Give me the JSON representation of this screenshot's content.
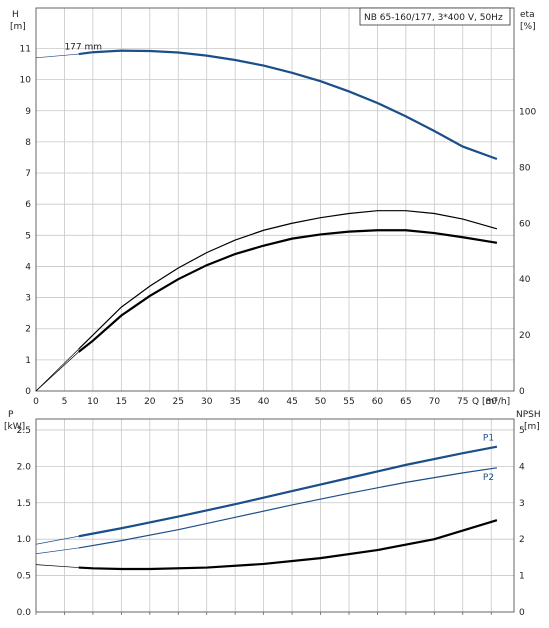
{
  "chart_data": [
    {
      "type": "line",
      "title": "NB 65-160/177, 3*400 V, 50Hz",
      "x_axis": {
        "label": "Q [m³/h]",
        "range": [
          0,
          84
        ],
        "ticks": [
          0,
          5,
          10,
          15,
          20,
          25,
          30,
          35,
          40,
          45,
          50,
          55,
          60,
          65,
          70,
          75,
          80
        ]
      },
      "y_axis_left": {
        "label_line1": "H",
        "label_line2": "[m]",
        "range": [
          0,
          12.3
        ],
        "ticks": [
          0,
          1,
          2,
          3,
          4,
          5,
          6,
          7,
          8,
          9,
          10,
          11
        ]
      },
      "y_axis_right": {
        "label_line1": "eta",
        "label_line2": "[%]",
        "range": [
          0,
          137
        ],
        "ticks": [
          0,
          20,
          40,
          60,
          80,
          100
        ]
      },
      "grid": true,
      "annotations": [
        {
          "text": "177 mm",
          "x": 5,
          "y": 10.9
        }
      ],
      "series": [
        {
          "name": "177 mm",
          "axis": "left",
          "color": "#1b4f8a",
          "x": [
            0,
            7.5,
            10,
            15,
            20,
            25,
            30,
            35,
            40,
            45,
            50,
            55,
            60,
            65,
            70,
            75,
            81
          ],
          "y": [
            10.7,
            10.82,
            10.88,
            10.93,
            10.92,
            10.87,
            10.77,
            10.63,
            10.45,
            10.22,
            9.95,
            9.62,
            9.25,
            8.82,
            8.35,
            7.85,
            7.45
          ],
          "dashed_until_x": 7.5
        },
        {
          "axis": "right",
          "color": "#000000",
          "x": [
            0,
            7.5,
            10,
            15,
            20,
            25,
            30,
            35,
            40,
            45,
            50,
            55,
            60,
            65,
            70,
            75,
            81
          ],
          "y": [
            0,
            15,
            20,
            30,
            37.5,
            44,
            49.5,
            54,
            57.5,
            60,
            62,
            63.5,
            64.5,
            64.5,
            63.5,
            61.5,
            58
          ],
          "dashed_until_x": 7.5
        },
        {
          "axis": "right",
          "color": "#000000",
          "x": [
            0,
            7.5,
            10,
            15,
            20,
            25,
            30,
            35,
            40,
            45,
            50,
            55,
            60,
            65,
            70,
            75,
            81
          ],
          "y": [
            0,
            14,
            18,
            27,
            34,
            40,
            45,
            49,
            52,
            54.5,
            56,
            57,
            57.5,
            57.5,
            56.5,
            55,
            53
          ],
          "dashed_until_x": 7.5
        }
      ]
    },
    {
      "type": "line",
      "x_axis": {
        "range": [
          0,
          84
        ],
        "ticks": [
          0,
          5,
          10,
          15,
          20,
          25,
          30,
          35,
          40,
          45,
          50,
          55,
          60,
          65,
          70,
          75,
          80
        ]
      },
      "y_axis_left": {
        "label_line1": "P",
        "label_line2": "[kW]",
        "range": [
          0,
          2.65
        ],
        "ticks": [
          "0.0",
          "0.5",
          "1.0",
          "1.5",
          "2.0",
          "2.5"
        ]
      },
      "y_axis_right": {
        "label_line1": "NPSH",
        "label_line2": "[m]",
        "range": [
          0,
          5.3
        ],
        "ticks": [
          0,
          1,
          2,
          3,
          4,
          5
        ]
      },
      "grid": true,
      "series": [
        {
          "name": "P1",
          "axis": "left",
          "color": "#1b4f8a",
          "x": [
            0,
            7.5,
            15,
            25,
            35,
            45,
            55,
            65,
            75,
            81
          ],
          "y": [
            0.93,
            1.04,
            1.15,
            1.31,
            1.48,
            1.66,
            1.84,
            2.02,
            2.18,
            2.27
          ],
          "dashed_until_x": 7.5
        },
        {
          "name": "P2",
          "axis": "left",
          "color": "#1b4f8a",
          "x": [
            0,
            7.5,
            15,
            25,
            35,
            45,
            55,
            65,
            75,
            81
          ],
          "y": [
            0.8,
            0.88,
            0.98,
            1.13,
            1.3,
            1.47,
            1.63,
            1.78,
            1.91,
            1.98
          ],
          "dashed_until_x": 7.5
        },
        {
          "axis": "right",
          "color": "#000000",
          "x": [
            0,
            7.5,
            10,
            15,
            20,
            30,
            40,
            50,
            60,
            70,
            81
          ],
          "y": [
            1.3,
            1.22,
            1.2,
            1.18,
            1.18,
            1.22,
            1.32,
            1.48,
            1.7,
            2.0,
            2.52
          ],
          "dashed_until_x": 7.5
        }
      ]
    }
  ]
}
